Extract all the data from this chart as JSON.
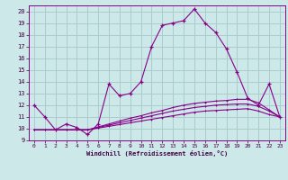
{
  "xlabel": "Windchill (Refroidissement éolien,°C)",
  "bg_color": "#cce8e8",
  "grid_color": "#aacccc",
  "line_color": "#880088",
  "xlim": [
    -0.5,
    23.5
  ],
  "ylim": [
    9,
    20.5
  ],
  "xticks": [
    0,
    1,
    2,
    3,
    4,
    5,
    6,
    7,
    8,
    9,
    10,
    11,
    12,
    13,
    14,
    15,
    16,
    17,
    18,
    19,
    20,
    21,
    22,
    23
  ],
  "yticks": [
    9,
    10,
    11,
    12,
    13,
    14,
    15,
    16,
    17,
    18,
    19,
    20
  ],
  "curve1_x": [
    0,
    1,
    2,
    3,
    4,
    5,
    6,
    7,
    8,
    9,
    10,
    11,
    12,
    13,
    14,
    15,
    16,
    17,
    18,
    19,
    20,
    21,
    22,
    23
  ],
  "curve1_y": [
    12.0,
    11.0,
    9.9,
    10.4,
    10.1,
    9.5,
    10.4,
    13.8,
    12.8,
    13.0,
    14.0,
    17.0,
    18.8,
    19.0,
    19.2,
    20.2,
    19.0,
    18.2,
    16.8,
    14.8,
    12.6,
    12.0,
    13.8,
    11.0
  ],
  "curve2_x": [
    0,
    1,
    2,
    3,
    4,
    5,
    6,
    7,
    8,
    9,
    10,
    11,
    12,
    13,
    14,
    15,
    16,
    17,
    18,
    19,
    20,
    21,
    22,
    23
  ],
  "curve2_y": [
    9.9,
    9.9,
    9.9,
    9.9,
    9.9,
    9.9,
    10.05,
    10.2,
    10.35,
    10.5,
    10.65,
    10.8,
    10.95,
    11.1,
    11.25,
    11.4,
    11.5,
    11.55,
    11.6,
    11.65,
    11.7,
    11.5,
    11.2,
    11.0
  ],
  "curve3_x": [
    0,
    1,
    2,
    3,
    4,
    5,
    6,
    7,
    8,
    9,
    10,
    11,
    12,
    13,
    14,
    15,
    16,
    17,
    18,
    19,
    20,
    21,
    22,
    23
  ],
  "curve3_y": [
    9.9,
    9.9,
    9.9,
    9.9,
    9.9,
    9.9,
    10.1,
    10.3,
    10.5,
    10.7,
    10.9,
    11.1,
    11.3,
    11.5,
    11.65,
    11.8,
    11.9,
    12.0,
    12.05,
    12.1,
    12.1,
    11.9,
    11.5,
    11.0
  ],
  "curve4_x": [
    0,
    1,
    2,
    3,
    4,
    5,
    6,
    7,
    8,
    9,
    10,
    11,
    12,
    13,
    14,
    15,
    16,
    17,
    18,
    19,
    20,
    21,
    22,
    23
  ],
  "curve4_y": [
    9.9,
    9.9,
    9.9,
    9.9,
    9.9,
    9.9,
    10.15,
    10.4,
    10.65,
    10.9,
    11.1,
    11.35,
    11.55,
    11.8,
    12.0,
    12.15,
    12.25,
    12.35,
    12.4,
    12.5,
    12.5,
    12.2,
    11.6,
    11.0
  ]
}
